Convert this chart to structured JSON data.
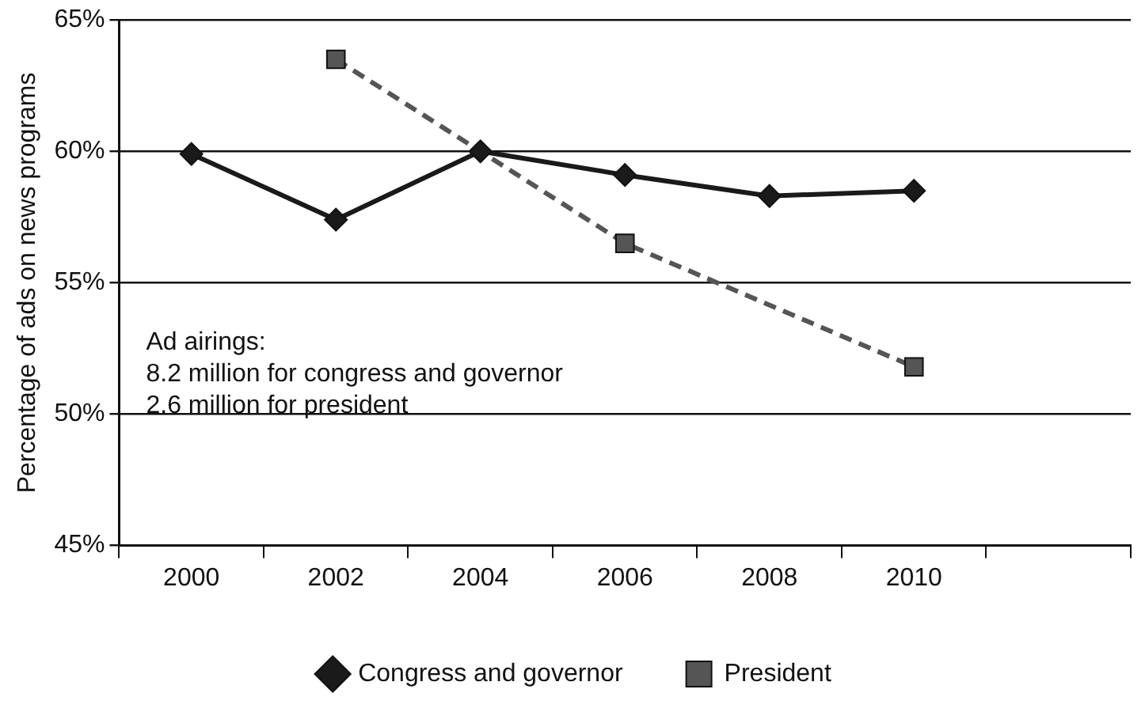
{
  "chart_data": {
    "type": "line",
    "ylabel": "Percentage of ads on news programs",
    "categories": [
      "2000",
      "2002",
      "2004",
      "2006",
      "2008",
      "2010",
      null
    ],
    "series": [
      {
        "name": "Congress and governor",
        "color": "#1a1a1a",
        "marker": "diamond",
        "line_style": "solid",
        "values": [
          59.9,
          57.4,
          60.0,
          59.1,
          58.3,
          58.5,
          null
        ]
      },
      {
        "name": "President",
        "color": "#555555",
        "marker": "square",
        "line_style": "dashed",
        "values": [
          null,
          63.5,
          null,
          56.5,
          null,
          51.8,
          null
        ]
      }
    ],
    "ylim": [
      45,
      65
    ],
    "yticks": [
      {
        "value": 45,
        "label": "45%"
      },
      {
        "value": 50,
        "label": "50%"
      },
      {
        "value": 55,
        "label": "55%"
      },
      {
        "value": 60,
        "label": "60%"
      },
      {
        "value": 65,
        "label": "65%"
      }
    ],
    "grid": "y",
    "legend": "bottom",
    "annotations": [
      "Ad airings:\n8.2 million for congress and governor\n2.6 million for president"
    ]
  }
}
